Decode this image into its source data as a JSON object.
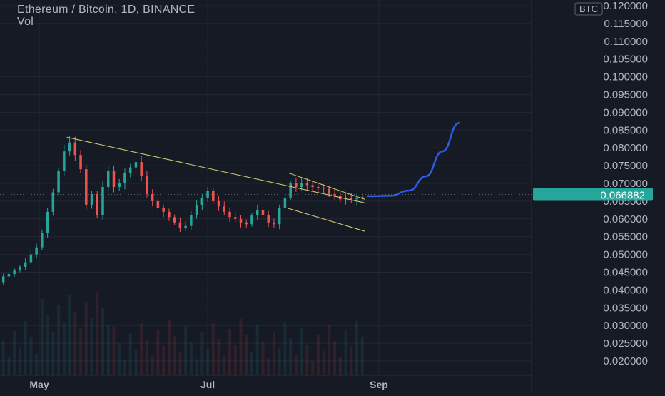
{
  "header": {
    "title": "Ethereum / Bitcoin, 1D, BINANCE",
    "indicator": "Vol"
  },
  "chart_data": {
    "type": "candlestick",
    "symbol": "Ethereum / Bitcoin",
    "interval": "1D",
    "exchange": "BINANCE",
    "currency_unit": "BTC",
    "current_price": "0.066882",
    "y_ticks": [
      "0.120000",
      "0.115000",
      "0.110000",
      "0.105000",
      "0.100000",
      "0.095000",
      "0.090000",
      "0.085000",
      "0.080000",
      "0.075000",
      "0.070000",
      "0.065000",
      "0.060000",
      "0.055000",
      "0.050000",
      "0.045000",
      "0.040000",
      "0.035000",
      "0.030000",
      "0.025000",
      "0.020000"
    ],
    "ylim": [
      0.018,
      0.121
    ],
    "x_ticks": [
      {
        "label": "May",
        "date": "2021-05-01"
      },
      {
        "label": "Jul",
        "date": "2021-07-01"
      },
      {
        "label": "Sep",
        "date": "2021-09-01"
      }
    ],
    "grid": true,
    "colors": {
      "up": "#26a69a",
      "down": "#ef5350",
      "trendline": "#d4cf6b",
      "projection": "#2e5ce6",
      "price_tag": "#26a69a",
      "background": "#161a25",
      "grid": "#232734"
    },
    "close_series": [
      {
        "date": "2021-04-10",
        "close": 0.0386
      },
      {
        "date": "2021-04-12",
        "close": 0.0394
      },
      {
        "date": "2021-04-14",
        "close": 0.0402
      },
      {
        "date": "2021-04-16",
        "close": 0.0422
      },
      {
        "date": "2021-04-18",
        "close": 0.0438
      },
      {
        "date": "2021-04-20",
        "close": 0.0445
      },
      {
        "date": "2021-04-22",
        "close": 0.0455
      },
      {
        "date": "2021-04-24",
        "close": 0.0465
      },
      {
        "date": "2021-04-26",
        "close": 0.0478
      },
      {
        "date": "2021-04-28",
        "close": 0.05
      },
      {
        "date": "2021-04-30",
        "close": 0.052
      },
      {
        "date": "2021-05-02",
        "close": 0.056
      },
      {
        "date": "2021-05-04",
        "close": 0.062
      },
      {
        "date": "2021-05-06",
        "close": 0.0675
      },
      {
        "date": "2021-05-08",
        "close": 0.0735
      },
      {
        "date": "2021-05-10",
        "close": 0.079
      },
      {
        "date": "2021-05-12",
        "close": 0.0815
      },
      {
        "date": "2021-05-14",
        "close": 0.078
      },
      {
        "date": "2021-05-16",
        "close": 0.074
      },
      {
        "date": "2021-05-18",
        "close": 0.064
      },
      {
        "date": "2021-05-20",
        "close": 0.067
      },
      {
        "date": "2021-05-22",
        "close": 0.061
      },
      {
        "date": "2021-05-24",
        "close": 0.069
      },
      {
        "date": "2021-05-26",
        "close": 0.0735
      },
      {
        "date": "2021-05-28",
        "close": 0.069
      },
      {
        "date": "2021-05-30",
        "close": 0.07
      },
      {
        "date": "2021-06-01",
        "close": 0.073
      },
      {
        "date": "2021-06-03",
        "close": 0.0745
      },
      {
        "date": "2021-06-05",
        "close": 0.076
      },
      {
        "date": "2021-06-07",
        "close": 0.072
      },
      {
        "date": "2021-06-09",
        "close": 0.067
      },
      {
        "date": "2021-06-11",
        "close": 0.065
      },
      {
        "date": "2021-06-13",
        "close": 0.063
      },
      {
        "date": "2021-06-15",
        "close": 0.062
      },
      {
        "date": "2021-06-17",
        "close": 0.0605
      },
      {
        "date": "2021-06-19",
        "close": 0.059
      },
      {
        "date": "2021-06-21",
        "close": 0.0575
      },
      {
        "date": "2021-06-23",
        "close": 0.058
      },
      {
        "date": "2021-06-25",
        "close": 0.061
      },
      {
        "date": "2021-06-27",
        "close": 0.064
      },
      {
        "date": "2021-06-29",
        "close": 0.066
      },
      {
        "date": "2021-07-01",
        "close": 0.068
      },
      {
        "date": "2021-07-03",
        "close": 0.065
      },
      {
        "date": "2021-07-05",
        "close": 0.0635
      },
      {
        "date": "2021-07-07",
        "close": 0.062
      },
      {
        "date": "2021-07-09",
        "close": 0.0605
      },
      {
        "date": "2021-07-11",
        "close": 0.06
      },
      {
        "date": "2021-07-13",
        "close": 0.059
      },
      {
        "date": "2021-07-15",
        "close": 0.0585
      },
      {
        "date": "2021-07-17",
        "close": 0.061
      },
      {
        "date": "2021-07-19",
        "close": 0.0625
      },
      {
        "date": "2021-07-21",
        "close": 0.061
      },
      {
        "date": "2021-07-23",
        "close": 0.059
      },
      {
        "date": "2021-07-25",
        "close": 0.0585
      },
      {
        "date": "2021-07-27",
        "close": 0.063
      },
      {
        "date": "2021-07-29",
        "close": 0.066
      },
      {
        "date": "2021-07-31",
        "close": 0.07
      },
      {
        "date": "2021-08-02",
        "close": 0.069
      },
      {
        "date": "2021-08-04",
        "close": 0.07
      },
      {
        "date": "2021-08-06",
        "close": 0.0695
      },
      {
        "date": "2021-08-08",
        "close": 0.069
      },
      {
        "date": "2021-08-10",
        "close": 0.0688
      },
      {
        "date": "2021-08-12",
        "close": 0.0685
      },
      {
        "date": "2021-08-14",
        "close": 0.067
      },
      {
        "date": "2021-08-16",
        "close": 0.0665
      },
      {
        "date": "2021-08-18",
        "close": 0.0655
      },
      {
        "date": "2021-08-20",
        "close": 0.066
      },
      {
        "date": "2021-08-22",
        "close": 0.0655
      },
      {
        "date": "2021-08-24",
        "close": 0.066
      },
      {
        "date": "2021-08-26",
        "close": 0.0662
      }
    ],
    "trendlines": [
      {
        "name": "upper",
        "from": {
          "date": "2021-05-11",
          "price": 0.083
        },
        "to": {
          "date": "2021-08-27",
          "price": 0.0645
        }
      },
      {
        "name": "lower",
        "from": {
          "date": "2021-07-30",
          "price": 0.063
        },
        "to": {
          "date": "2021-08-27",
          "price": 0.0565
        }
      },
      {
        "name": "wedge-top",
        "from": {
          "date": "2021-07-30",
          "price": 0.073
        },
        "to": {
          "date": "2021-08-27",
          "price": 0.0655
        }
      }
    ],
    "projection": [
      {
        "date": "2021-08-28",
        "price": 0.0664
      },
      {
        "date": "2021-09-05",
        "price": 0.0665
      },
      {
        "date": "2021-09-12",
        "price": 0.068
      },
      {
        "date": "2021-09-18",
        "price": 0.072
      },
      {
        "date": "2021-09-24",
        "price": 0.079
      },
      {
        "date": "2021-09-30",
        "price": 0.087
      }
    ]
  }
}
